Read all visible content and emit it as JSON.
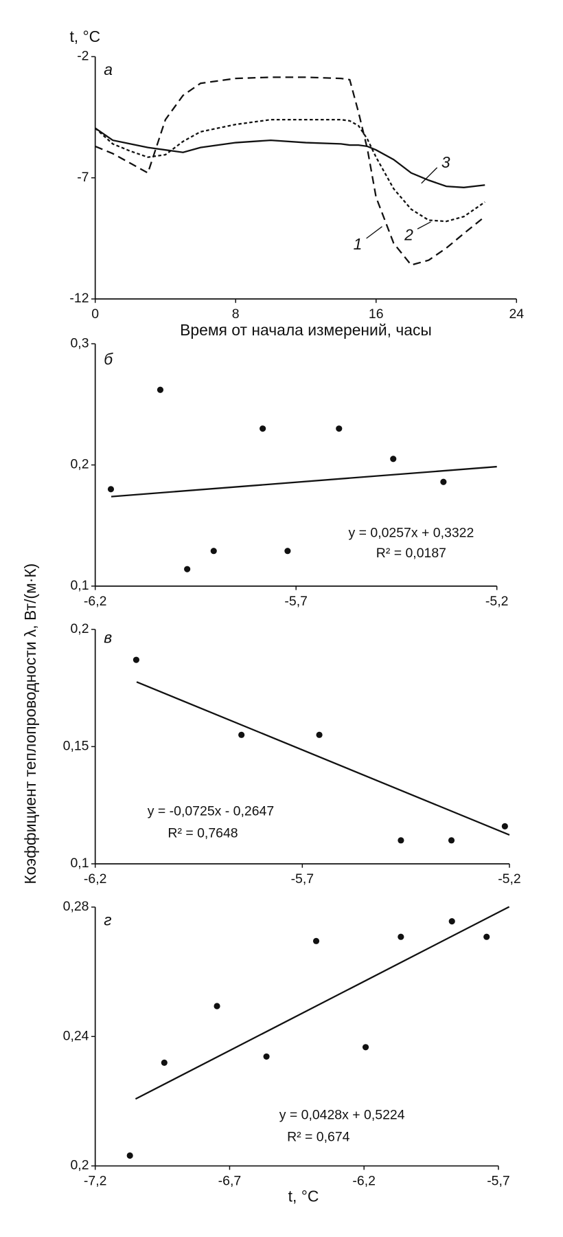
{
  "chart_data": [
    {
      "type": "line",
      "panel": "а",
      "ylabel": "t, °C",
      "xlabel": "Время от начала измерений, часы",
      "x": [
        0,
        1,
        2,
        3,
        4,
        5,
        6,
        8,
        10,
        12,
        14,
        14.5,
        15,
        15.5,
        16,
        17,
        18,
        19,
        20,
        21,
        22.2
      ],
      "xlim": [
        0,
        24
      ],
      "xticks": [
        0,
        8,
        16,
        24
      ],
      "ylim": [
        -12,
        -2
      ],
      "yticks": [
        -2,
        -7,
        -12
      ],
      "series": [
        {
          "name": "1",
          "color": "#111111",
          "dash": "10,6",
          "values": [
            -5.7,
            -6.0,
            -6.4,
            -6.8,
            -4.6,
            -3.6,
            -3.1,
            -2.9,
            -2.85,
            -2.85,
            -2.9,
            -2.95,
            -4.3,
            -5.8,
            -7.8,
            -9.7,
            -10.6,
            -10.4,
            -9.9,
            -9.3,
            -8.6
          ]
        },
        {
          "name": "2",
          "color": "#111111",
          "dash": "4,3",
          "values": [
            -4.95,
            -5.6,
            -5.9,
            -6.15,
            -6.05,
            -5.5,
            -5.1,
            -4.8,
            -4.6,
            -4.6,
            -4.6,
            -4.65,
            -4.85,
            -5.4,
            -6.15,
            -7.45,
            -8.3,
            -8.75,
            -8.8,
            -8.6,
            -8.0
          ]
        },
        {
          "name": "3",
          "color": "#111111",
          "values": [
            -4.95,
            -5.45,
            -5.6,
            -5.75,
            -5.85,
            -5.95,
            -5.75,
            -5.55,
            -5.45,
            -5.55,
            -5.6,
            -5.65,
            -5.65,
            -5.7,
            -5.85,
            -6.25,
            -6.8,
            -7.1,
            -7.35,
            -7.4,
            -7.3
          ]
        }
      ]
    },
    {
      "type": "scatter",
      "panel": "б",
      "ylabel": "Коэффициент теплопроводности λ, Вт/(м·К)",
      "color": "#111111",
      "x": [
        -6.161,
        -6.038,
        -5.971,
        -5.905,
        -5.783,
        -5.721,
        -5.593,
        -5.458,
        -5.333
      ],
      "values": [
        0.18,
        0.262,
        0.114,
        0.129,
        0.23,
        0.129,
        0.23,
        0.205,
        0.186
      ],
      "xlim": [
        -6.2,
        -5.2
      ],
      "xticks": [
        {
          "value": -6.2,
          "label": "-6,2"
        },
        {
          "value": -5.7,
          "label": "-5,7"
        },
        {
          "value": -5.2,
          "label": "-5,2"
        }
      ],
      "ylim": [
        0.1,
        0.3
      ],
      "yticks": [
        {
          "value": 0.3,
          "label": "0,3"
        },
        {
          "value": 0.2,
          "label": "0,2"
        },
        {
          "value": 0.1,
          "label": "0,1"
        }
      ],
      "trendline": {
        "x": [
          -6.16,
          -5.2
        ],
        "values": [
          0.1739,
          0.1986
        ]
      },
      "equation": "y = 0,0257x + 0,3322",
      "r2": "R² = 0,0187"
    },
    {
      "type": "scatter",
      "panel": "в",
      "color": "#111111",
      "x": [
        -6.101,
        -5.847,
        -5.659,
        -5.462,
        -5.34,
        -5.211
      ],
      "values": [
        0.187,
        0.155,
        0.155,
        0.11,
        0.11,
        0.116
      ],
      "xlim": [
        -6.2,
        -5.2
      ],
      "xticks": [
        {
          "value": -6.2,
          "label": "-6,2"
        },
        {
          "value": -5.7,
          "label": "-5,7"
        },
        {
          "value": -5.2,
          "label": "-5,2"
        }
      ],
      "ylim": [
        0.1,
        0.2
      ],
      "yticks": [
        {
          "value": 0.2,
          "label": "0,2"
        },
        {
          "value": 0.15,
          "label": "0,15"
        },
        {
          "value": 0.1,
          "label": "0,1"
        }
      ],
      "trendline": {
        "x": [
          -6.1,
          -5.2
        ],
        "values": [
          0.1776,
          0.1123
        ]
      },
      "equation": "y = -0,0725x - 0,2647",
      "r2": "R² = 0,7648"
    },
    {
      "type": "scatter",
      "panel": "г",
      "xlabel": "t, °C",
      "color": "#111111",
      "x": [
        -7.071,
        -6.943,
        -6.747,
        -6.563,
        -6.378,
        -6.194,
        -6.063,
        -5.873,
        -5.744
      ],
      "values": [
        0.2032,
        0.2319,
        0.2494,
        0.2338,
        0.2695,
        0.2367,
        0.2708,
        0.2756,
        0.2708
      ],
      "xlim": [
        -7.2,
        -5.7
      ],
      "xticks": [
        {
          "value": -7.2,
          "label": "-7,2"
        },
        {
          "value": -6.7,
          "label": "-6,7"
        },
        {
          "value": -6.2,
          "label": "-6,2"
        },
        {
          "value": -5.7,
          "label": "-5,7"
        }
      ],
      "ylim": [
        0.2,
        0.28
      ],
      "yticks": [
        {
          "value": 0.28,
          "label": "0,28"
        },
        {
          "value": 0.24,
          "label": "0,24"
        },
        {
          "value": 0.2,
          "label": "0,2"
        }
      ],
      "trendline": {
        "x": [
          -7.05,
          -5.66
        ],
        "values": [
          0.2207,
          0.2801
        ]
      },
      "equation": "y = 0,0428x + 0,5224",
      "r2": "R² = 0,674"
    }
  ]
}
